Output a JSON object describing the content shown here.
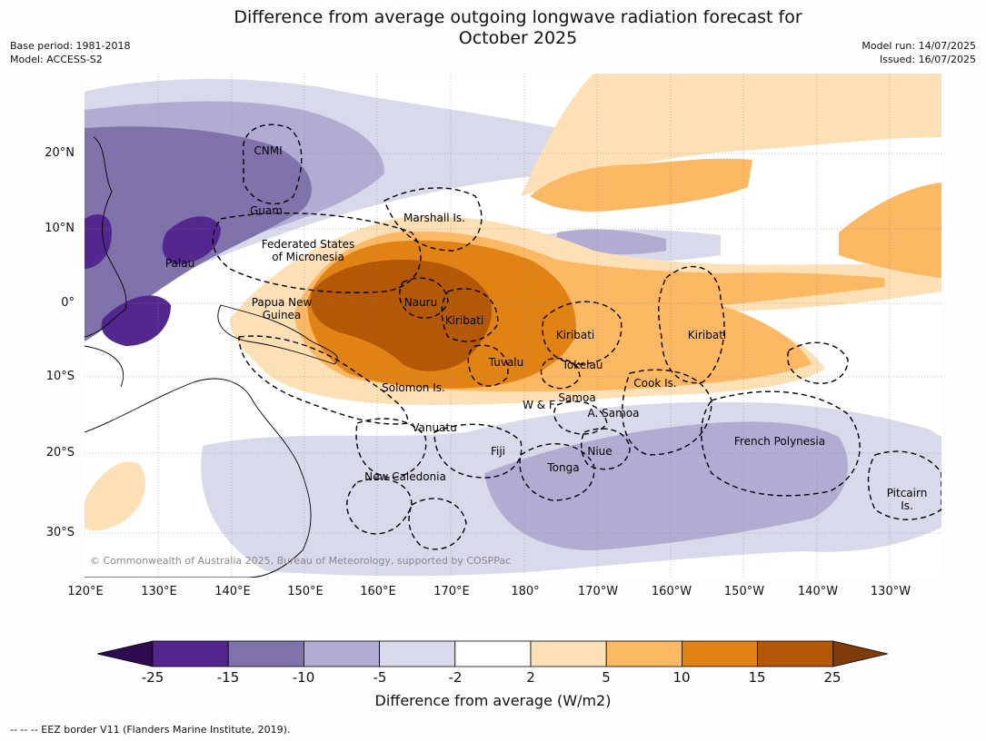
{
  "title_line1": "Difference from average outgoing longwave radiation forecast for",
  "title_line2": "October 2025",
  "meta_left": [
    "Base period: 1981-2018",
    "Model: ACCESS-S2"
  ],
  "meta_right": [
    "Model run: 14/07/2025",
    "Issued: 16/07/2025"
  ],
  "lat_labels": [
    "20°N",
    "10°N",
    "0°",
    "10°S",
    "20°S",
    "30°S"
  ],
  "lon_labels": [
    "120°E",
    "130°E",
    "140°E",
    "150°E",
    "160°E",
    "170°E",
    "180°",
    "170°W",
    "160°W",
    "150°W",
    "140°W",
    "130°W"
  ],
  "region_labels": [
    "CNMI",
    "Guam",
    "Marshall Is.",
    "Federated States",
    "of Micronesia",
    "Palau",
    "Papua New",
    "Guinea",
    "Nauru",
    "Kiribati",
    "Kiribati",
    "Kiribati",
    "Tuvalu",
    "Tokelau",
    "Solomon Is.",
    "Cook Is.",
    "W & F",
    "Samoa",
    "A. Samoa",
    "Vanuatu",
    "Fiji",
    "Niue",
    "Tonga",
    "New Caledonia",
    "French Polynesia",
    "Pitcairn",
    "Is."
  ],
  "copyright": "© Commonwealth of Australia 2025, Bureau of Meteorology, supported by COSPPac",
  "colorbar": {
    "ticks": [
      "-25",
      "-15",
      "-10",
      "-5",
      "-2",
      "2",
      "5",
      "10",
      "15",
      "25"
    ],
    "colors": [
      "#2e0a4f",
      "#54278f",
      "#8073ac",
      "#b2abd2",
      "#d8daeb",
      "#ffffff",
      "#fee0b6",
      "#fdb863",
      "#e08214",
      "#b35806",
      "#7f3b08"
    ],
    "title": "Difference from average (W/m2)"
  },
  "legend_note": "--  --  -- EEZ border V11 (Flanders Marine Institute, 2019)."
}
